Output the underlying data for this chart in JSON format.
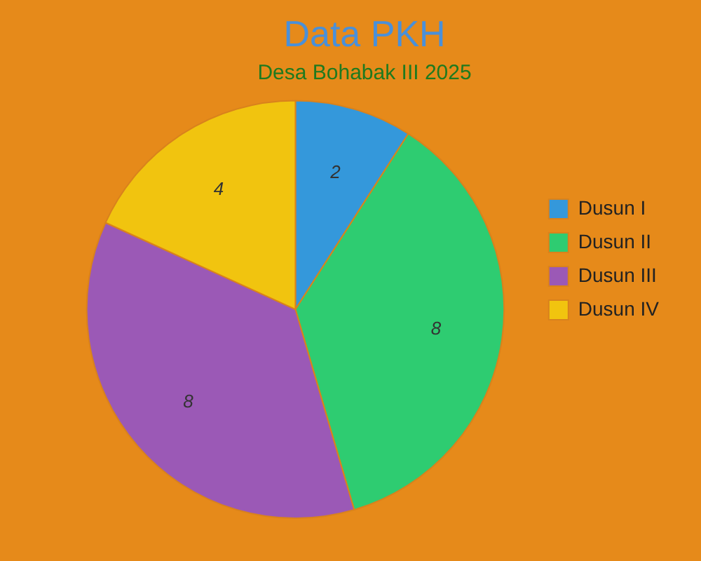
{
  "chart_data": {
    "type": "pie",
    "title": "Data PKH",
    "subtitle": "Desa Bohabak III 2025",
    "categories": [
      "Dusun I",
      "Dusun II",
      "Dusun III",
      "Dusun IV"
    ],
    "values": [
      2,
      8,
      8,
      4
    ],
    "colors": [
      "#3498db",
      "#2ecc71",
      "#9b59b6",
      "#f1c40f"
    ],
    "data_labels": true,
    "legend": "right"
  }
}
